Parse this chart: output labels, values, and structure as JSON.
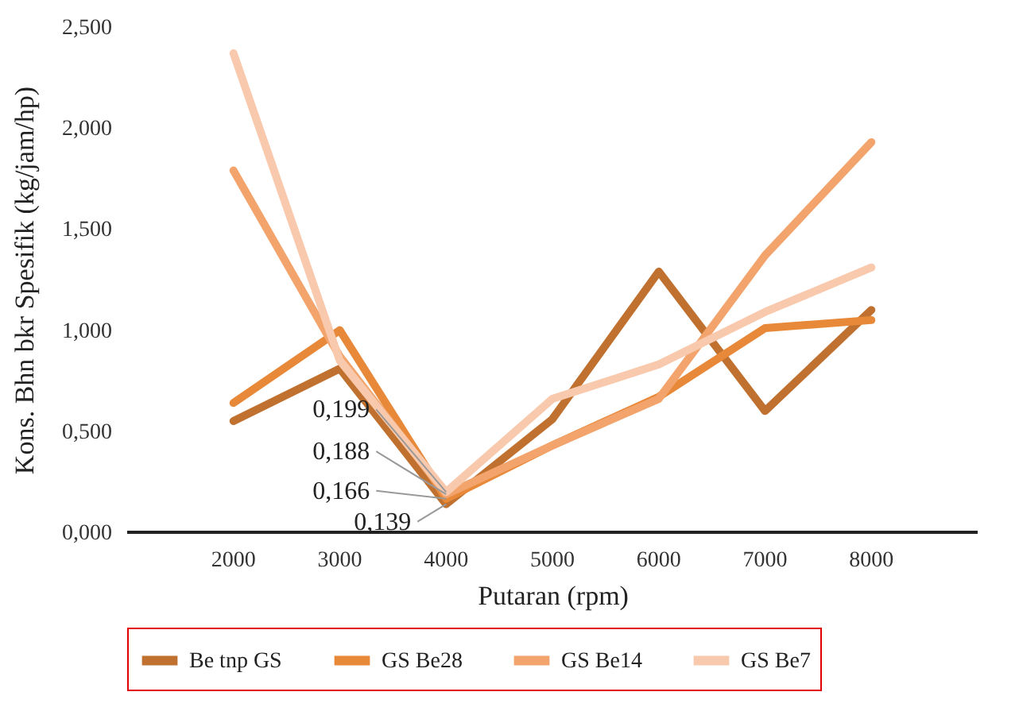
{
  "chart_data": {
    "type": "line",
    "xlabel": "Putaran (rpm)",
    "ylabel": "Kons. Bhn bkr Spesifik (kg/jam/hp)",
    "categories": [
      "2000",
      "3000",
      "4000",
      "5000",
      "6000",
      "7000",
      "8000"
    ],
    "series": [
      {
        "name": "Be tnp GS",
        "color": "#c0712f",
        "values": [
          0.55,
          0.81,
          0.139,
          0.56,
          1.29,
          0.6,
          1.1
        ]
      },
      {
        "name": "GS Be28",
        "color": "#e8893a",
        "values": [
          0.64,
          1.0,
          0.166,
          0.43,
          0.67,
          1.01,
          1.05
        ]
      },
      {
        "name": "GS Be14",
        "color": "#f2a46c",
        "values": [
          1.79,
          0.87,
          0.188,
          0.43,
          0.66,
          1.37,
          1.93
        ]
      },
      {
        "name": "GS Be7",
        "color": "#f8c9ad",
        "values": [
          2.37,
          0.85,
          0.199,
          0.66,
          0.83,
          1.09,
          1.31
        ]
      }
    ],
    "ylim": [
      0,
      2.5
    ],
    "yticks": [
      {
        "value": 0,
        "label": "0,000"
      },
      {
        "value": 0.5,
        "label": "0,500"
      },
      {
        "value": 1,
        "label": "1,000"
      },
      {
        "value": 1.5,
        "label": "1,500"
      },
      {
        "value": 2,
        "label": "2,000"
      },
      {
        "value": 2.5,
        "label": "2,500"
      }
    ],
    "annotations": [
      {
        "text": "0,199",
        "x": "4000",
        "y": 0.199
      },
      {
        "text": "0,188",
        "x": "4000",
        "y": 0.188
      },
      {
        "text": "0,166",
        "x": "4000",
        "y": 0.166
      },
      {
        "text": "0,139",
        "x": "4000",
        "y": 0.139
      }
    ],
    "grid": false,
    "legend": "bottom",
    "marker": "none",
    "line_style": "solid"
  }
}
